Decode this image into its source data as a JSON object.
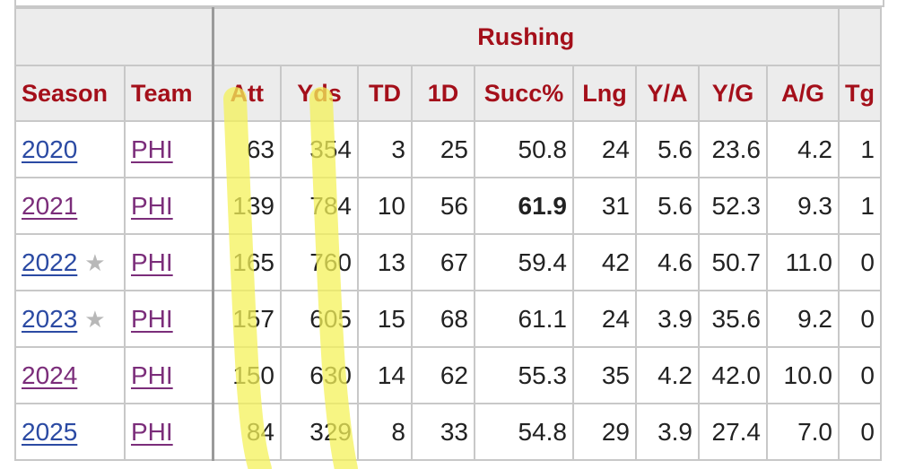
{
  "table": {
    "group_header": "Rushing",
    "columns": [
      "Season",
      "Team",
      "Att",
      "Yds",
      "TD",
      "1D",
      "Succ%",
      "Lng",
      "Y/A",
      "Y/G",
      "A/G",
      "Tg"
    ],
    "rows": [
      {
        "season": "2020",
        "team": "PHI",
        "att": "63",
        "yds": "354",
        "td": "3",
        "fd": "25",
        "succ": "50.8",
        "lng": "24",
        "ya": "5.6",
        "yg": "23.6",
        "ag": "4.2",
        "tg": "1",
        "star": ""
      },
      {
        "season": "2021",
        "team": "PHI",
        "att": "139",
        "yds": "784",
        "td": "10",
        "fd": "56",
        "succ": "61.9",
        "lng": "31",
        "ya": "5.6",
        "yg": "52.3",
        "ag": "9.3",
        "tg": "1",
        "star": ""
      },
      {
        "season": "2022",
        "team": "PHI",
        "att": "165",
        "yds": "760",
        "td": "13",
        "fd": "67",
        "succ": "59.4",
        "lng": "42",
        "ya": "4.6",
        "yg": "50.7",
        "ag": "11.0",
        "tg": "0",
        "star": "★"
      },
      {
        "season": "2023",
        "team": "PHI",
        "att": "157",
        "yds": "605",
        "td": "15",
        "fd": "68",
        "succ": "61.1",
        "lng": "24",
        "ya": "3.9",
        "yg": "35.6",
        "ag": "9.2",
        "tg": "0",
        "star": "★"
      },
      {
        "season": "2024",
        "team": "PHI",
        "att": "150",
        "yds": "630",
        "td": "14",
        "fd": "62",
        "succ": "55.3",
        "lng": "35",
        "ya": "4.2",
        "yg": "42.0",
        "ag": "10.0",
        "tg": "0",
        "star": ""
      },
      {
        "season": "2025",
        "team": "PHI",
        "att": "84",
        "yds": "329",
        "td": "8",
        "fd": "33",
        "succ": "54.8",
        "lng": "29",
        "ya": "3.9",
        "yg": "27.4",
        "ag": "7.0",
        "tg": "0",
        "star": ""
      }
    ]
  },
  "colors": {
    "header_text": "#a40f1a",
    "header_bg": "#ececec",
    "link_unvisited": "#2b4aa3",
    "link_visited": "#7b2d7a",
    "highlighter": "#f4f25a"
  }
}
